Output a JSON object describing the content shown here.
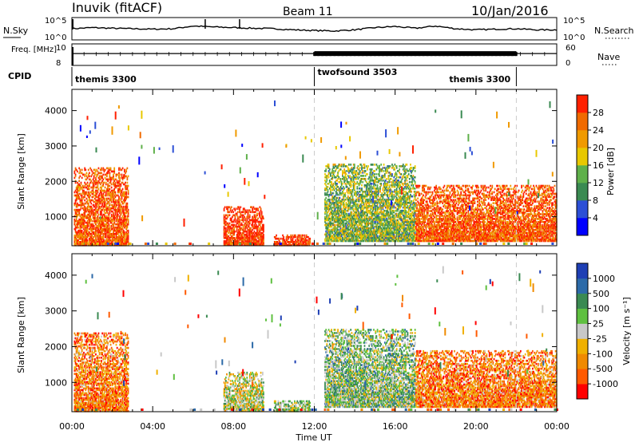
{
  "header": {
    "station": "Inuvik (fitACF)",
    "beam": "Beam 11",
    "date": "10/Jan/2016"
  },
  "colors": {
    "power": [
      "#0000ff",
      "#2c4fd6",
      "#3a8a52",
      "#5fb04a",
      "#e8c800",
      "#f09a00",
      "#f06a00",
      "#ff2000"
    ],
    "velocity": [
      "#ff0000",
      "#ff5a00",
      "#f08a00",
      "#f0b000",
      "#c8c8c8",
      "#5fc040",
      "#3a8a52",
      "#2c6aa8",
      "#1e3fb4"
    ],
    "line": "#000000",
    "divider": "#cccccc"
  },
  "chart_data": [
    {
      "type": "line",
      "title": "N.Sky / N.Search",
      "ylabel_left": "N.Sky",
      "ylabel_right": "N.Search",
      "left_ticks": [
        "10^5",
        "10^0"
      ],
      "right_ticks": [
        "10^5",
        "10^0"
      ],
      "x_hours": [
        0,
        1,
        2,
        3,
        4,
        5,
        6,
        7,
        8,
        9,
        10,
        11,
        12,
        13,
        14,
        15,
        16,
        17,
        18,
        19,
        20,
        21,
        22,
        23,
        24
      ],
      "values": [
        0.5,
        0.55,
        0.52,
        0.5,
        0.48,
        0.5,
        0.62,
        0.58,
        0.55,
        0.52,
        0.5,
        0.45,
        0.42,
        0.4,
        0.45,
        0.55,
        0.6,
        0.52,
        0.62,
        0.5,
        0.45,
        0.48,
        0.5,
        0.45,
        0.45
      ],
      "spikes_hours": [
        0.05,
        6.6,
        8.3
      ]
    },
    {
      "type": "line",
      "title": "Freq. / Nave",
      "ylabel_left": "Freq. [MHz]",
      "ylabel_right": "Nave",
      "left_ticks": [
        "10",
        "8"
      ],
      "right_ticks": [
        "60",
        "0"
      ],
      "freq_level": 0.55,
      "dense_hours": [
        12,
        22
      ]
    },
    {
      "type": "table",
      "label": "CPID",
      "segments": [
        {
          "name": "themis 3300",
          "start_hour": 0,
          "end_hour": 12
        },
        {
          "name": "twofsound 3503",
          "start_hour": 12,
          "end_hour": 22
        },
        {
          "name": "themis 3300",
          "start_hour": 22,
          "end_hour": 24
        }
      ]
    },
    {
      "type": "heatmap",
      "ylabel": "Slant Range [km]",
      "yticks": [
        1000,
        2000,
        3000,
        4000
      ],
      "ylim": [
        180,
        4600
      ],
      "colorbar_label": "Power [dB]",
      "colorbar_ticks": [
        "4",
        "8",
        "12",
        "16",
        "20",
        "24",
        "28"
      ],
      "regions": [
        {
          "h0": 0.1,
          "h1": 2.8,
          "r0": 180,
          "r1": 2400,
          "c": 0.85
        },
        {
          "h0": 7.5,
          "h1": 9.5,
          "r0": 200,
          "r1": 1300,
          "c": 0.95
        },
        {
          "h0": 10,
          "h1": 11.8,
          "r0": 180,
          "r1": 500,
          "c": 0.95
        },
        {
          "h0": 12.5,
          "h1": 17,
          "r0": 300,
          "r1": 2500,
          "c": 0.45
        },
        {
          "h0": 17,
          "h1": 24,
          "r0": 300,
          "r1": 1900,
          "c": 0.85
        }
      ]
    },
    {
      "type": "heatmap",
      "ylabel": "Slant Range [km]",
      "xlabel": "Time UT",
      "xticks": [
        "00:00",
        "04:00",
        "08:00",
        "12:00",
        "16:00",
        "20:00",
        "00:00"
      ],
      "yticks": [
        1000,
        2000,
        3000,
        4000
      ],
      "ylim": [
        180,
        4600
      ],
      "colorbar_label": "Velocity [m s⁻¹]",
      "colorbar_ticks": [
        "-1000",
        "-500",
        "-100",
        "-25",
        "25",
        "100",
        "500",
        "1000"
      ],
      "regions": [
        {
          "h0": 0.1,
          "h1": 2.8,
          "r0": 180,
          "r1": 2400,
          "c": 0.25
        },
        {
          "h0": 7.5,
          "h1": 9.5,
          "r0": 200,
          "r1": 1300,
          "c": 0.5
        },
        {
          "h0": 10,
          "h1": 11.8,
          "r0": 180,
          "r1": 500,
          "c": 0.55
        },
        {
          "h0": 12.5,
          "h1": 17,
          "r0": 300,
          "r1": 2500,
          "c": 0.6
        },
        {
          "h0": 17,
          "h1": 24,
          "r0": 300,
          "r1": 1900,
          "c": 0.25
        }
      ]
    }
  ]
}
